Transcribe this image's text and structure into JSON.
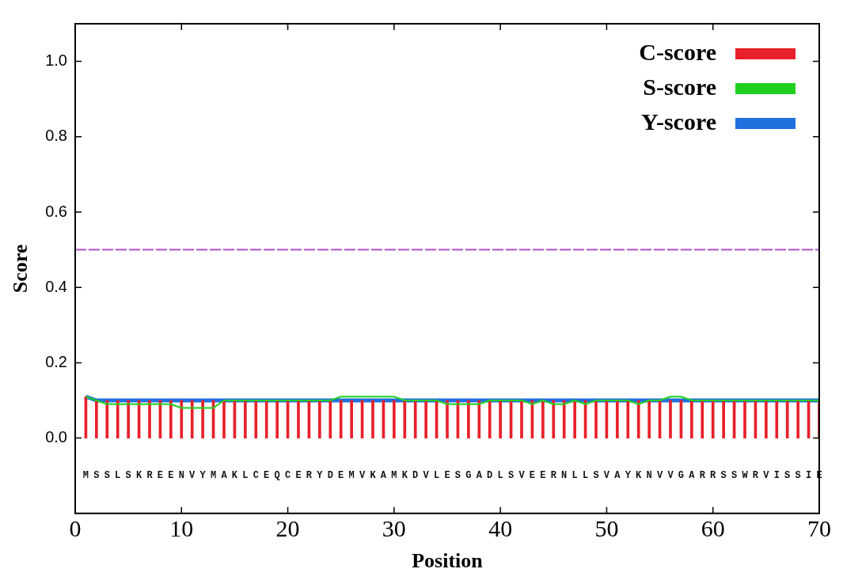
{
  "chart_data": {
    "type": "line",
    "xlabel": "Position",
    "ylabel": "Score",
    "x": [
      1,
      2,
      3,
      4,
      5,
      6,
      7,
      8,
      9,
      10,
      11,
      12,
      13,
      14,
      15,
      16,
      17,
      18,
      19,
      20,
      21,
      22,
      23,
      24,
      25,
      26,
      27,
      28,
      29,
      30,
      31,
      32,
      33,
      34,
      35,
      36,
      37,
      38,
      39,
      40,
      41,
      42,
      43,
      44,
      45,
      46,
      47,
      48,
      49,
      50,
      51,
      52,
      53,
      54,
      55,
      56,
      57,
      58,
      59,
      60,
      61,
      62,
      63,
      64,
      65,
      66,
      67,
      68,
      69,
      70
    ],
    "series": [
      {
        "name": "C-score",
        "type": "bar",
        "color": "#e8202a",
        "values": [
          0.11,
          0.1,
          0.1,
          0.1,
          0.1,
          0.1,
          0.1,
          0.1,
          0.1,
          0.1,
          0.1,
          0.1,
          0.1,
          0.1,
          0.1,
          0.1,
          0.1,
          0.1,
          0.1,
          0.1,
          0.1,
          0.1,
          0.1,
          0.1,
          0.1,
          0.1,
          0.1,
          0.1,
          0.1,
          0.1,
          0.1,
          0.1,
          0.1,
          0.1,
          0.1,
          0.1,
          0.1,
          0.1,
          0.1,
          0.1,
          0.1,
          0.1,
          0.1,
          0.1,
          0.1,
          0.1,
          0.1,
          0.1,
          0.1,
          0.1,
          0.1,
          0.1,
          0.1,
          0.1,
          0.1,
          0.1,
          0.1,
          0.1,
          0.1,
          0.1,
          0.1,
          0.1,
          0.1,
          0.1,
          0.1,
          0.1,
          0.1,
          0.1,
          0.1,
          0.1
        ]
      },
      {
        "name": "S-score",
        "color": "#20d020",
        "values": [
          0.11,
          0.1,
          0.09,
          0.09,
          0.09,
          0.09,
          0.09,
          0.09,
          0.09,
          0.08,
          0.08,
          0.08,
          0.08,
          0.1,
          0.1,
          0.1,
          0.1,
          0.1,
          0.1,
          0.1,
          0.1,
          0.1,
          0.1,
          0.1,
          0.11,
          0.11,
          0.11,
          0.11,
          0.11,
          0.11,
          0.1,
          0.1,
          0.1,
          0.1,
          0.09,
          0.09,
          0.09,
          0.09,
          0.1,
          0.1,
          0.1,
          0.1,
          0.09,
          0.1,
          0.09,
          0.09,
          0.1,
          0.09,
          0.1,
          0.1,
          0.1,
          0.1,
          0.09,
          0.1,
          0.1,
          0.11,
          0.11,
          0.1,
          0.1,
          0.1,
          0.1,
          0.1,
          0.1,
          0.1,
          0.1,
          0.1,
          0.1,
          0.1,
          0.1,
          0.1
        ]
      },
      {
        "name": "Y-score",
        "color": "#2070e0",
        "values": [
          0.11,
          0.1,
          0.1,
          0.1,
          0.1,
          0.1,
          0.1,
          0.1,
          0.1,
          0.1,
          0.1,
          0.1,
          0.1,
          0.1,
          0.1,
          0.1,
          0.1,
          0.1,
          0.1,
          0.1,
          0.1,
          0.1,
          0.1,
          0.1,
          0.1,
          0.1,
          0.1,
          0.1,
          0.1,
          0.1,
          0.1,
          0.1,
          0.1,
          0.1,
          0.1,
          0.1,
          0.1,
          0.1,
          0.1,
          0.1,
          0.1,
          0.1,
          0.1,
          0.1,
          0.1,
          0.1,
          0.1,
          0.1,
          0.1,
          0.1,
          0.1,
          0.1,
          0.1,
          0.1,
          0.1,
          0.1,
          0.1,
          0.1,
          0.1,
          0.1,
          0.1,
          0.1,
          0.1,
          0.1,
          0.1,
          0.1,
          0.1,
          0.1,
          0.1,
          0.1
        ]
      }
    ],
    "ref_lines": [
      {
        "axis": "y",
        "value": 0.5,
        "color": "#b050d0",
        "line_style": "dashed"
      }
    ],
    "xlim": [
      0,
      70
    ],
    "xticks": [
      0,
      10,
      20,
      30,
      40,
      50,
      60,
      70
    ],
    "ylim": [
      -0.2,
      1.1
    ],
    "yticks": [
      {
        "value": 0,
        "label": "0.0"
      },
      {
        "value": 0.2,
        "label": "0.2"
      },
      {
        "value": 0.4,
        "label": "0.4"
      },
      {
        "value": 0.6,
        "label": "0.6"
      },
      {
        "value": 0.8,
        "label": "0.8"
      },
      {
        "value": 1,
        "label": "1.0"
      }
    ],
    "grid": false,
    "legend": "top right",
    "marker": "none",
    "annotations": [
      "MSSLSKREENVYMAKLCEQCERYDEMVKAMKDVLESGADLSVEERNLLSVAYKNVVGARRSSWRVISSIE"
    ]
  }
}
